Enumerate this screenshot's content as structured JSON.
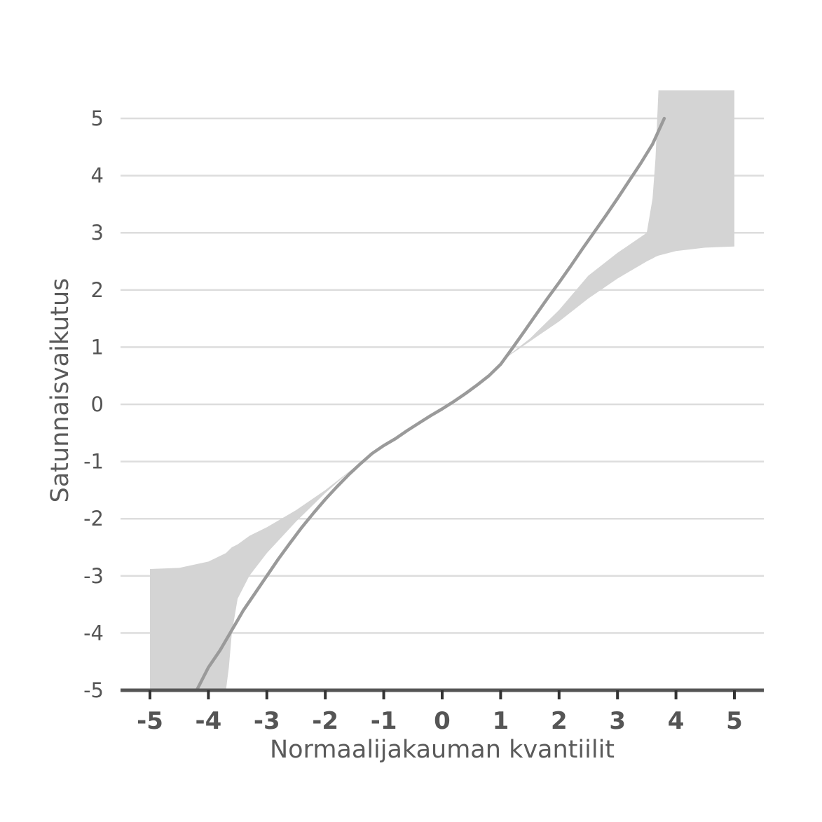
{
  "chart_data": {
    "type": "line",
    "title": "",
    "xlabel": "Normaalijakauman kvantiilit",
    "ylabel": "Satunnaisvaikutus",
    "xlim": [
      -5,
      5
    ],
    "ylim": [
      -5,
      5
    ],
    "x_ticks": [
      "-5",
      "-4",
      "-3",
      "-2",
      "-1",
      "0",
      "1",
      "2",
      "3",
      "4",
      "5"
    ],
    "y_ticks": [
      "5",
      "4",
      "3",
      "2",
      "1",
      "0",
      "-1",
      "-2",
      "-3",
      "-4",
      "-5"
    ],
    "grid": "horizontal",
    "legend": "none",
    "colors": {
      "band": "#d4d4d4",
      "line": "#9a9a9a",
      "grid": "#dddddd",
      "axis": "#555555",
      "text": "#555555"
    },
    "confidence_band": {
      "x": [
        -5,
        -4.5,
        -4,
        -3.7,
        -3.65,
        -3.6,
        -3.5,
        -3.3,
        -3,
        -2.5,
        -2,
        -1.5,
        -1,
        -0.5,
        0,
        0.5,
        1,
        1.5,
        2,
        2.5,
        3,
        3.5,
        3.6,
        3.65,
        3.7,
        4,
        4.5,
        5
      ],
      "lower": [
        -5.5,
        -5.5,
        -5.5,
        -5.5,
        -4.6,
        -4.0,
        -3.4,
        -3.0,
        -2.6,
        -2.05,
        -1.55,
        -1.1,
        -0.85,
        -0.45,
        -0.1,
        0.35,
        0.75,
        1.1,
        1.45,
        1.85,
        2.2,
        2.5,
        2.55,
        2.58,
        2.6,
        2.68,
        2.74,
        2.76
      ],
      "upper": [
        -2.88,
        -2.86,
        -2.75,
        -2.6,
        -2.55,
        -2.5,
        -2.45,
        -2.3,
        -2.15,
        -1.85,
        -1.5,
        -1.1,
        -0.85,
        -0.45,
        -0.1,
        0.35,
        0.75,
        1.15,
        1.65,
        2.25,
        2.65,
        3.0,
        3.6,
        4.3,
        5.5,
        5.5,
        5.5,
        5.5
      ]
    },
    "series": [
      {
        "x": [
          -4.2,
          -4.0,
          -3.8,
          -3.6,
          -3.4,
          -3.2,
          -3.0,
          -2.8,
          -2.6,
          -2.4,
          -2.2,
          -2.0,
          -1.8,
          -1.6,
          -1.4,
          -1.2,
          -1.0,
          -0.8,
          -0.6,
          -0.4,
          -0.2,
          0.0,
          0.2,
          0.4,
          0.6,
          0.8,
          1.0,
          1.2,
          1.4,
          1.6,
          1.8,
          2.0,
          2.2,
          2.4,
          2.6,
          2.8,
          3.0,
          3.2,
          3.4,
          3.6,
          3.8
        ],
        "y": [
          -5.0,
          -4.6,
          -4.3,
          -3.95,
          -3.6,
          -3.3,
          -3.0,
          -2.7,
          -2.42,
          -2.15,
          -1.9,
          -1.66,
          -1.44,
          -1.23,
          -1.04,
          -0.86,
          -0.72,
          -0.6,
          -0.46,
          -0.33,
          -0.2,
          -0.08,
          0.05,
          0.19,
          0.34,
          0.5,
          0.7,
          0.98,
          1.27,
          1.56,
          1.85,
          2.13,
          2.42,
          2.72,
          3.01,
          3.3,
          3.6,
          3.91,
          4.22,
          4.55,
          5.0
        ]
      }
    ]
  }
}
